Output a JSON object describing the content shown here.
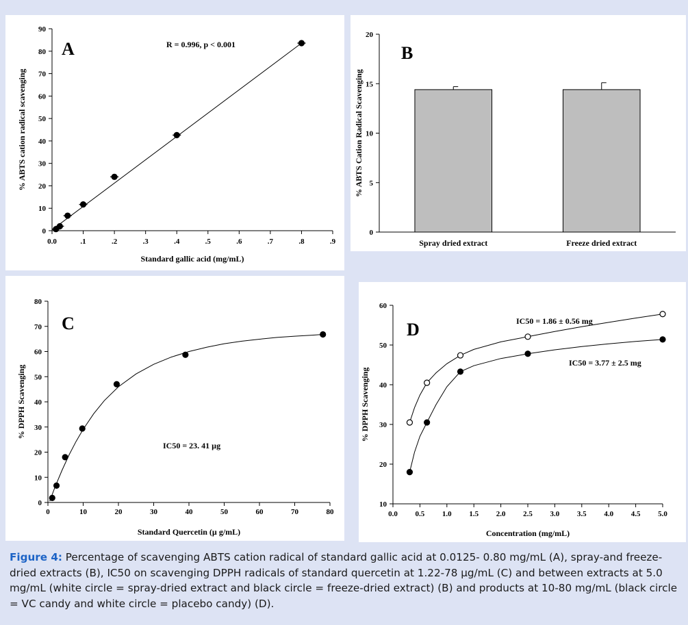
{
  "caption": {
    "label": "Figure 4:",
    "text": " Percentage of scavenging ABTS cation radical of standard gallic acid at 0.0125- 0.80 mg/mL (A), spray-and freeze-dried extracts (B), IC50 on scavenging DPPH radicals of standard quercetin at 1.22-78 µg/mL (C) and between extracts at 5.0 mg/mL (white circle = spray-dried extract and black circle = freeze-dried extract) (B) and products at 10-80 mg/mL (black circle = VC candy and white circle = placebo candy) (D)."
  },
  "colors": {
    "page_bg": "#dde3f4",
    "caption_label": "#1c63c6",
    "bar_fill": "#bebebe"
  },
  "chart_data": [
    {
      "id": "A",
      "type": "scatter",
      "panel_letter": "A",
      "annotation": "R = 0.996, p < 0.001",
      "xlabel": "Standard gallic acid (mg/mL)",
      "ylabel": "% ABTS cation radical scavenging",
      "xlim": [
        0,
        0.9
      ],
      "ylim": [
        0,
        90
      ],
      "xticks": [
        0,
        0.1,
        0.2,
        0.3,
        0.4,
        0.5,
        0.6,
        0.7,
        0.8,
        0.9
      ],
      "xtick_labels": [
        "0.0",
        ".1",
        ".2",
        ".3",
        ".4",
        ".5",
        ".6",
        ".7",
        ".8",
        ".9"
      ],
      "yticks": [
        0,
        10,
        20,
        30,
        40,
        50,
        60,
        70,
        80,
        90
      ],
      "ytick_labels": [
        "0",
        "10",
        "20",
        "30",
        "40",
        "50",
        "60",
        "70",
        "80",
        "90"
      ],
      "series": [
        {
          "marker": "filled",
          "x": [
            0.0125,
            0.025,
            0.05,
            0.1,
            0.2,
            0.4,
            0.8
          ],
          "y": [
            0.7,
            2.0,
            6.7,
            11.7,
            24.0,
            42.6,
            83.6
          ]
        }
      ],
      "fit_line": {
        "x": [
          0.0,
          0.8
        ],
        "y": [
          0.4,
          83.6
        ]
      }
    },
    {
      "id": "B",
      "type": "bar",
      "panel_letter": "B",
      "ylabel": "% ABTS Cation Radical Scavenging",
      "categories": [
        "Spray dried extract",
        "Freeze dried extract"
      ],
      "values": [
        14.4,
        14.4
      ],
      "errors": [
        0.3,
        0.7
      ],
      "ylim": [
        0,
        20
      ],
      "yticks": [
        0,
        5,
        10,
        15,
        20
      ],
      "ytick_labels": [
        "0",
        "5",
        "10",
        "15",
        "20"
      ]
    },
    {
      "id": "C",
      "type": "scatter",
      "panel_letter": "C",
      "annotation": "IC50 = 23. 41 µg",
      "xlabel": "Standard Quercetin (µ g/mL)",
      "ylabel": "% DPPH Scavenging",
      "xlim": [
        0,
        80
      ],
      "ylim": [
        0,
        80
      ],
      "xticks": [
        0,
        10,
        20,
        30,
        40,
        50,
        60,
        70,
        80
      ],
      "xtick_labels": [
        "0",
        "10",
        "20",
        "30",
        "40",
        "50",
        "60",
        "70",
        "80"
      ],
      "yticks": [
        0,
        10,
        20,
        30,
        40,
        50,
        60,
        70,
        80
      ],
      "ytick_labels": [
        "0",
        "10",
        "20",
        "30",
        "40",
        "50",
        "60",
        "70",
        "80"
      ],
      "series": [
        {
          "marker": "filled",
          "x": [
            1.22,
            2.44,
            4.88,
            9.75,
            19.5,
            39.0,
            78.0
          ],
          "y": [
            1.8,
            6.7,
            18.0,
            29.4,
            47.0,
            58.7,
            66.8
          ]
        }
      ],
      "fit_curve": {
        "x": [
          0.5,
          2,
          4,
          6,
          8,
          10,
          13,
          16,
          20,
          25,
          30,
          35,
          40,
          45,
          50,
          55,
          60,
          65,
          70,
          75,
          78
        ],
        "y": [
          0.5,
          6.1,
          12.8,
          18.9,
          24.3,
          29.1,
          35.3,
          40.5,
          46.0,
          51.1,
          54.9,
          57.8,
          60.0,
          61.7,
          63.1,
          64.1,
          64.9,
          65.6,
          66.1,
          66.5,
          66.8
        ]
      }
    },
    {
      "id": "D",
      "type": "scatter",
      "panel_letter": "D",
      "xlabel": "Concentration (mg/mL)",
      "ylabel": "% DPPH Scavenging",
      "xlim": [
        0,
        5.0
      ],
      "ylim": [
        10,
        60
      ],
      "xticks": [
        0,
        0.5,
        1.0,
        1.5,
        2.0,
        2.5,
        3.0,
        3.5,
        4.0,
        4.5,
        5.0
      ],
      "xtick_labels": [
        "0.0",
        "0.5",
        "1.0",
        "1.5",
        "2.0",
        "2.5",
        "3.0",
        "3.5",
        "4.0",
        "4.5",
        "5.0"
      ],
      "yticks": [
        10,
        20,
        30,
        40,
        50,
        60
      ],
      "ytick_labels": [
        "10",
        "20",
        "30",
        "40",
        "50",
        "60"
      ],
      "series": [
        {
          "marker": "open",
          "annotation": "IC50 = 1.86 ± 0.56 mg",
          "x": [
            0.31,
            0.63,
            1.25,
            2.5,
            5.0
          ],
          "y": [
            30.5,
            40.5,
            47.4,
            52.1,
            57.8
          ],
          "curve_x": [
            0.31,
            0.4,
            0.5,
            0.63,
            0.8,
            1.0,
            1.25,
            1.5,
            2.0,
            2.5,
            3.0,
            3.5,
            4.0,
            4.5,
            5.0
          ],
          "curve_y": [
            30.5,
            34.2,
            37.4,
            40.5,
            43.0,
            45.3,
            47.4,
            48.9,
            50.8,
            52.1,
            53.4,
            54.6,
            55.7,
            56.8,
            57.8
          ]
        },
        {
          "marker": "filled",
          "annotation": "IC50 = 3.77 ± 2.5  mg",
          "x": [
            0.31,
            0.63,
            1.25,
            2.5,
            5.0
          ],
          "y": [
            18.0,
            30.5,
            43.3,
            47.8,
            51.4
          ],
          "curve_x": [
            0.31,
            0.4,
            0.5,
            0.63,
            0.8,
            1.0,
            1.25,
            1.5,
            2.0,
            2.5,
            3.0,
            3.5,
            4.0,
            4.5,
            5.0
          ],
          "curve_y": [
            18.0,
            23.0,
            27.0,
            30.5,
            35.0,
            39.5,
            43.3,
            44.8,
            46.6,
            47.8,
            48.8,
            49.6,
            50.3,
            50.9,
            51.4
          ]
        }
      ]
    }
  ]
}
